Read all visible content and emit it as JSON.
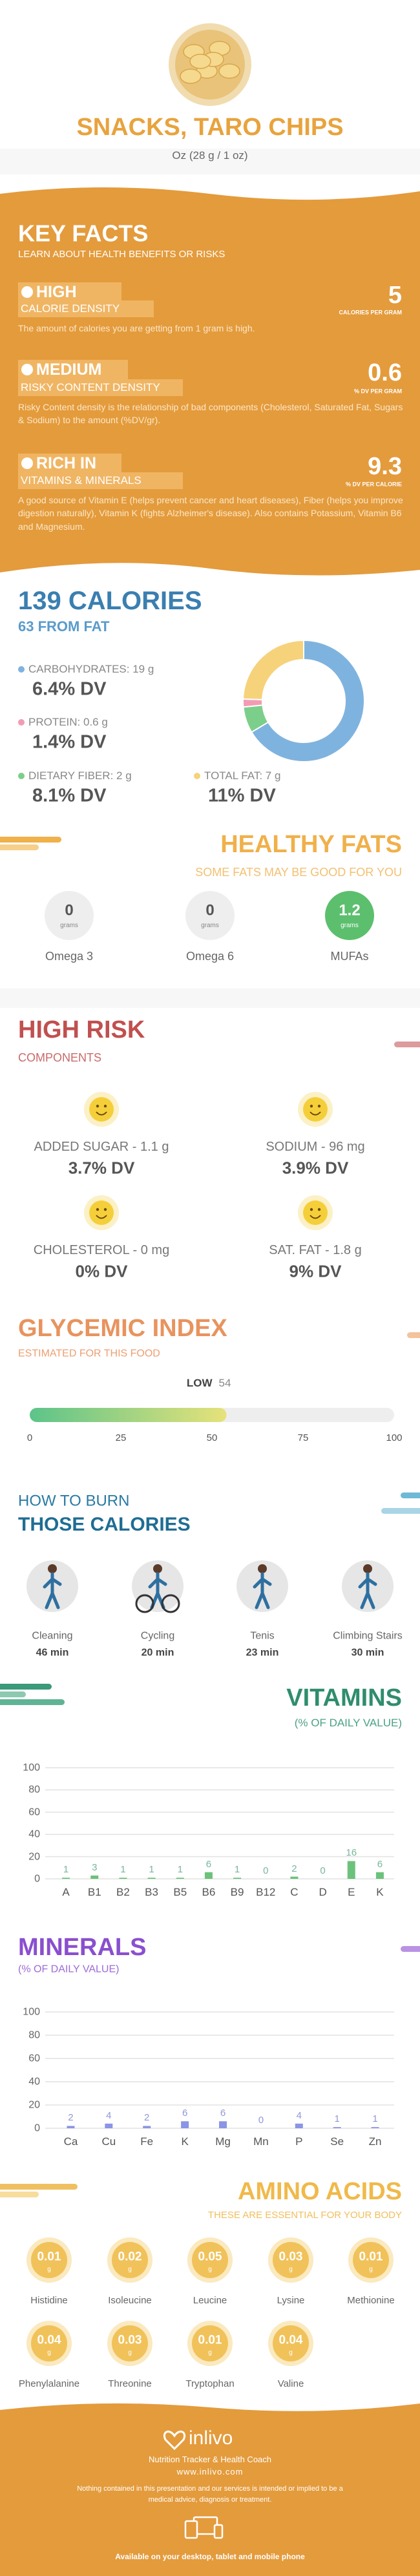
{
  "header": {
    "title": "SNACKS, TARO CHIPS",
    "serving": "Oz (28 g / 1 oz)"
  },
  "key_facts": {
    "title": "KEY FACTS",
    "subtitle": "LEARN ABOUT HEALTH BENEFITS OR RISKS",
    "items": [
      {
        "level": "HIGH",
        "label": "CALORIE DENSITY",
        "value": 5,
        "unit": "CALORIES PER GRAM",
        "text": "The amount of calories you are getting from 1 gram is high."
      },
      {
        "level": "MEDIUM",
        "label": "RISKY CONTENT DENSITY",
        "value": 0.6,
        "unit": "% DV PER GRAM",
        "text": "Risky Content density is the relationship of bad components (Cholesterol, Saturated Fat, Sugars & Sodium) to the amount (%DV/gr)."
      },
      {
        "level": "RICH IN",
        "label": "VITAMINS & MINERALS",
        "value": 9.3,
        "unit": "% DV PER CALORIE",
        "text": "A good source of Vitamin E (helps prevent cancer and heart diseases), Fiber (helps you improve digestion naturally), Vitamin K (fights Alzheimer's disease). Also contains Potassium, Vitamin B6 and Magnesium."
      }
    ]
  },
  "calories": {
    "title": "139 CALORIES",
    "subtitle": "63 FROM FAT",
    "macros": [
      {
        "name": "CARBOHYDRATES: 19 g",
        "value": 19,
        "dv": "6.4% DV",
        "color": "#7fb3df"
      },
      {
        "name": "PROTEIN: 0.6 g",
        "value": 0.6,
        "dv": "1.4% DV",
        "color": "#f29bb4"
      },
      {
        "name": "DIETARY FIBER: 2 g",
        "value": 2,
        "dv": "8.1% DV",
        "color": "#7ccf8a"
      },
      {
        "name": "TOTAL FAT: 7 g",
        "value": 7,
        "dv": "11% DV",
        "color": "#f6d27a"
      }
    ]
  },
  "healthy_fats": {
    "title": "HEALTHY FATS",
    "subtitle": "SOME FATS MAY BE GOOD FOR YOU",
    "items": [
      {
        "name": "Omega 3",
        "value": 0,
        "unit": "grams"
      },
      {
        "name": "Omega 6",
        "value": 0,
        "unit": "grams"
      },
      {
        "name": "MUFAs",
        "value": 1.2,
        "unit": "grams"
      }
    ]
  },
  "high_risk": {
    "title": "HIGH RISK",
    "subtitle": "COMPONENTS",
    "items": [
      {
        "name": "ADDED SUGAR - 1.1 g",
        "dv": "3.7% DV"
      },
      {
        "name": "SODIUM - 96 mg",
        "dv": "3.9% DV"
      },
      {
        "name": "CHOLESTEROL - 0 mg",
        "dv": "0% DV"
      },
      {
        "name": "SAT. FAT - 1.8 g",
        "dv": "9% DV"
      }
    ]
  },
  "glycemic": {
    "title": "GLYCEMIC INDEX",
    "subtitle": "ESTIMATED FOR THIS FOOD",
    "level": "LOW",
    "value": 54,
    "xlim": [
      0,
      100
    ],
    "xticks": [
      0,
      25,
      50,
      75,
      100
    ]
  },
  "burn": {
    "title": "HOW TO BURN",
    "subtitle": "THOSE CALORIES",
    "items": [
      {
        "name": "Cleaning",
        "time": "46 min"
      },
      {
        "name": "Cycling",
        "time": "20 min"
      },
      {
        "name": "Tenis",
        "time": "23 min"
      },
      {
        "name": "Climbing Stairs",
        "time": "30 min"
      }
    ]
  },
  "vitamins": {
    "title": "VITAMINS",
    "subtitle": "(% OF DAILY VALUE)",
    "chart": {
      "type": "bar",
      "categories": [
        "A",
        "B1",
        "B2",
        "B3",
        "B5",
        "B6",
        "B9",
        "B12",
        "C",
        "D",
        "E",
        "K"
      ],
      "values": [
        1,
        3,
        1,
        1,
        1,
        6,
        1,
        0,
        2,
        0,
        16,
        6
      ],
      "ylim": [
        0,
        100
      ],
      "yticks": [
        0,
        20,
        40,
        60,
        80,
        100
      ],
      "grid": true,
      "color": "#6cc27a"
    }
  },
  "minerals": {
    "title": "MINERALS",
    "subtitle": "(% OF DAILY VALUE)",
    "chart": {
      "type": "bar",
      "categories": [
        "Ca",
        "Cu",
        "Fe",
        "K",
        "Mg",
        "Mn",
        "P",
        "Se",
        "Zn"
      ],
      "values": [
        2,
        4,
        2,
        6,
        6,
        0,
        4,
        1,
        1
      ],
      "ylim": [
        0,
        100
      ],
      "yticks": [
        0,
        20,
        40,
        60,
        80,
        100
      ],
      "grid": true,
      "color": "#8a95e6"
    }
  },
  "amino_acids": {
    "title": "AMINO ACIDS",
    "subtitle": "THESE ARE ESSENTIAL FOR YOUR BODY",
    "items": [
      {
        "name": "Histidine",
        "value": 0.01,
        "unit": "g"
      },
      {
        "name": "Isoleucine",
        "value": 0.02,
        "unit": "g"
      },
      {
        "name": "Leucine",
        "value": 0.05,
        "unit": "g"
      },
      {
        "name": "Lysine",
        "value": 0.03,
        "unit": "g"
      },
      {
        "name": "Methionine",
        "value": 0.01,
        "unit": "g"
      },
      {
        "name": "Phenylalanine",
        "value": 0.04,
        "unit": "g"
      },
      {
        "name": "Threonine",
        "value": 0.03,
        "unit": "g"
      },
      {
        "name": "Tryptophan",
        "value": 0.01,
        "unit": "g"
      },
      {
        "name": "Valine",
        "value": 0.04,
        "unit": "g"
      }
    ]
  },
  "footer": {
    "brand": "inlivo",
    "tagline": "Nutrition Tracker & Health Coach",
    "url": "www.inlivo.com",
    "disclaimer": "Nothing contained in this presentation and our services is intended or implied to be a medical advice, diagnosis or treatment.",
    "available": "Available on your desktop, tablet and mobile phone"
  }
}
